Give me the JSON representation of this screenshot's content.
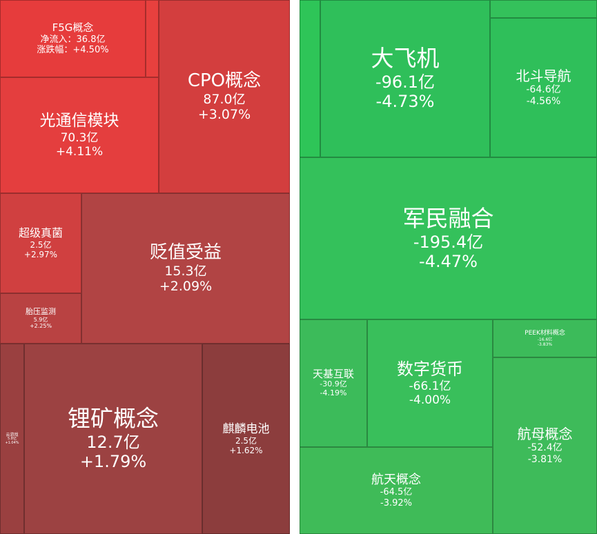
{
  "chart_data": [
    {
      "type": "treemap",
      "tiles": [
        {
          "name": "F5G概念",
          "value_label": "净流入：36.8亿",
          "pct_label": "涨跌幅：+4.50%",
          "value": 36.8,
          "pct": 4.5,
          "color": "#e63c3c",
          "font": 15
        },
        {
          "name": "CPO概念",
          "value": 87.0,
          "pct": 3.07,
          "color": "#d33e3e",
          "font": 26
        },
        {
          "name": "光通信模块",
          "value": 70.3,
          "pct": 4.11,
          "color": "#e43e3e",
          "font": 23
        },
        {
          "name": "超级真菌",
          "value": 2.5,
          "pct": 2.97,
          "color": "#d04040",
          "font": 16
        },
        {
          "name": "贬值受益",
          "value": 15.3,
          "pct": 2.09,
          "color": "#b14444",
          "font": 26
        },
        {
          "name": "胎压监测",
          "value": 5.9,
          "pct": 2.25,
          "color": "#b94242",
          "font": 11
        },
        {
          "name": "锂矿概念",
          "value": 12.7,
          "pct": 1.79,
          "color": "#9c4242",
          "font": 33
        },
        {
          "name": "麒麟电池",
          "value": 2.5,
          "pct": 1.62,
          "color": "#8c3d3d",
          "font": 17
        },
        {
          "name": "云游戏",
          "value": 5.8,
          "pct": 1.04,
          "color": "#9a4040",
          "font": 6
        },
        {
          "name": "",
          "color": "#e8403e",
          "font": 8
        }
      ]
    },
    {
      "type": "treemap",
      "tiles": [
        {
          "name": "大飞机",
          "value": -96.1,
          "pct": -4.73,
          "color": "#2fbf5a",
          "font": 33
        },
        {
          "name": "北斗导航",
          "value": -64.6,
          "pct": -4.56,
          "color": "#2fbf5a",
          "font": 20
        },
        {
          "name": "军民融合",
          "value": -195.4,
          "pct": -4.47,
          "color": "#34c15b",
          "font": 33
        },
        {
          "name": "天基互联",
          "value": -30.9,
          "pct": -4.19,
          "color": "#3cbb5a",
          "font": 15
        },
        {
          "name": "数字货币",
          "value": -66.1,
          "pct": -4.0,
          "color": "#39bf5b",
          "font": 24
        },
        {
          "name": "PEEK材料概念",
          "value": -16.6,
          "pct": -3.83,
          "color": "#3cbb5a",
          "font": 9
        },
        {
          "name": "航天概念",
          "value": -64.5,
          "pct": -3.92,
          "color": "#3fbb58",
          "font": 18
        },
        {
          "name": "航母概念",
          "value": -52.4,
          "pct": -3.81,
          "color": "#3ebb5a",
          "font": 20
        },
        {
          "name": "",
          "color": "#2ec558",
          "font": 4
        },
        {
          "name": "",
          "color": "#34c15b",
          "font": 4
        },
        {
          "name": "",
          "color": "#36c25b",
          "font": 4
        }
      ]
    }
  ]
}
